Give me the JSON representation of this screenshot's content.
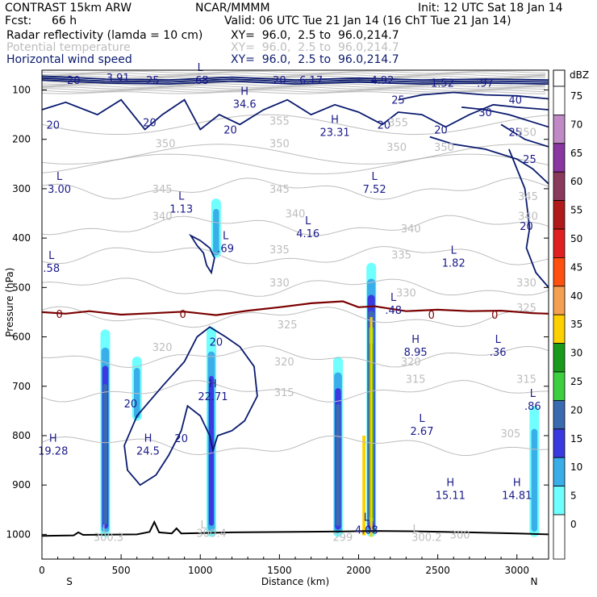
{
  "header": {
    "model": "CONTRAST 15km ARW",
    "center": "NCAR/MMMM",
    "init": "Init: 12 UTC Sat 18 Jan 14",
    "fcst_label": "Fcst:",
    "fcst_value": "66 h",
    "valid": "Valid: 06 UTC Tue 21 Jan 14 (16 ChT Tue 21 Jan 14)"
  },
  "fields": [
    {
      "name": "Radar reflectivity (lamda = 10 cm)",
      "xy": "XY=  96.0,  2.5 to  96.0,214.7",
      "color": "#000000"
    },
    {
      "name": "Potential temperature",
      "xy": "XY=  96.0,  2.5 to  96.0,214.7",
      "color": "#bdbdbd"
    },
    {
      "name": "Horizontal wind speed",
      "xy": "XY=  96.0,  2.5 to  96.0,214.7",
      "color": "#0a1a6e"
    }
  ],
  "chart_data": {
    "type": "cross-section",
    "xlabel": "Distance (km)",
    "ylabel": "Pressure (hPa)",
    "xlim": [
      0,
      3200
    ],
    "ylim": [
      1050,
      60
    ],
    "xticks": [
      0,
      500,
      1000,
      1500,
      2000,
      2500,
      3000
    ],
    "yticks": [
      100,
      200,
      300,
      400,
      500,
      600,
      700,
      800,
      900,
      1000
    ],
    "x_end_labels": {
      "left": "S",
      "right": "N"
    },
    "colorbar": {
      "unit": "dBZ",
      "levels": [
        75,
        70,
        65,
        60,
        55,
        50,
        45,
        40,
        35,
        30,
        25,
        20,
        15,
        10,
        5,
        0
      ],
      "colors": [
        "#ffffff",
        "#c08ac6",
        "#8a36a0",
        "#8a3a5a",
        "#b01a1a",
        "#e02020",
        "#ff5010",
        "#f5a050",
        "#ffd000",
        "#1a9a1a",
        "#3ecf3e",
        "#3a6ab0",
        "#3a3ae0",
        "#3aaee8",
        "#70ffff",
        "#ffffff"
      ]
    },
    "reflectivity_cells": [
      {
        "x_km": 400,
        "p_top": 585,
        "p_bot": 1005,
        "max_dbz": 20
      },
      {
        "x_km": 600,
        "p_top": 640,
        "p_bot": 770,
        "max_dbz": 10
      },
      {
        "x_km": 1070,
        "p_top": 580,
        "p_bot": 1005,
        "max_dbz": 15
      },
      {
        "x_km": 1100,
        "p_top": 320,
        "p_bot": 440,
        "max_dbz": 10
      },
      {
        "x_km": 1870,
        "p_top": 640,
        "p_bot": 1005,
        "max_dbz": 20
      },
      {
        "x_km": 2080,
        "p_top": 450,
        "p_bot": 1005,
        "max_dbz": 30
      },
      {
        "x_km": 3110,
        "p_top": 740,
        "p_bot": 1005,
        "max_dbz": 10
      }
    ],
    "theta_contours": [
      {
        "value": 345,
        "p": 300
      },
      {
        "value": 340,
        "p": 375
      },
      {
        "value": 335,
        "p": 435
      },
      {
        "value": 330,
        "p": 500
      },
      {
        "value": 325,
        "p": 560
      },
      {
        "value": 320,
        "p": 640
      },
      {
        "value": 315,
        "p": 710
      },
      {
        "value": 305,
        "p": 820
      }
    ],
    "labels": [
      {
        "text": "L",
        "x_km": 110,
        "p": 300,
        "color": "#1a1a8a"
      },
      {
        "text": "3.00",
        "x_km": 110,
        "p": 300,
        "color": "#1a1a8a"
      },
      {
        "text": "L",
        "x_km": 2100,
        "p": 300,
        "color": "#1a1a8a"
      },
      {
        "text": "7.52",
        "x_km": 2100,
        "p": 300,
        "color": "#1a1a8a"
      },
      {
        "text": "L",
        "x_km": 2600,
        "p": 450,
        "color": "#1a1a8a"
      },
      {
        "text": "1.82",
        "x_km": 2600,
        "p": 450,
        "color": "#1a1a8a"
      },
      {
        "text": "L",
        "x_km": 1680,
        "p": 390,
        "color": "#1a1a8a"
      },
      {
        "text": "4.16",
        "x_km": 1680,
        "p": 390,
        "color": "#1a1a8a"
      },
      {
        "text": "L",
        "x_km": 880,
        "p": 340,
        "color": "#1a1a8a"
      },
      {
        "text": "1.13",
        "x_km": 880,
        "p": 340,
        "color": "#1a1a8a"
      },
      {
        "text": "L",
        "x_km": 1160,
        "p": 420,
        "color": "#1a1a8a"
      },
      {
        "text": ".69",
        "x_km": 1160,
        "p": 420,
        "color": "#1a1a8a"
      },
      {
        "text": "L",
        "x_km": 60,
        "p": 460,
        "color": "#1a1a8a"
      },
      {
        "text": ".58",
        "x_km": 60,
        "p": 460,
        "color": "#1a1a8a"
      },
      {
        "text": "H",
        "x_km": 1850,
        "p": 185,
        "color": "#1a1a8a"
      },
      {
        "text": "23.31",
        "x_km": 1850,
        "p": 185,
        "color": "#1a1a8a"
      },
      {
        "text": "H",
        "x_km": 1280,
        "p": 128,
        "color": "#1a1a8a"
      },
      {
        "text": "34.6",
        "x_km": 1280,
        "p": 128,
        "color": "#1a1a8a"
      },
      {
        "text": "L",
        "x_km": 1000,
        "p": 80,
        "color": "#1a1a8a"
      },
      {
        "text": ".68",
        "x_km": 1000,
        "p": 80,
        "color": "#1a1a8a"
      },
      {
        "text": "L",
        "x_km": 2220,
        "p": 545,
        "color": "#1a1a8a"
      },
      {
        "text": ".48",
        "x_km": 2220,
        "p": 545,
        "color": "#1a1a8a"
      },
      {
        "text": "H",
        "x_km": 2360,
        "p": 630,
        "color": "#1a1a8a"
      },
      {
        "text": "8.95",
        "x_km": 2360,
        "p": 630,
        "color": "#1a1a8a"
      },
      {
        "text": "L",
        "x_km": 2880,
        "p": 630,
        "color": "#1a1a8a"
      },
      {
        "text": ".36",
        "x_km": 2880,
        "p": 630,
        "color": "#1a1a8a"
      },
      {
        "text": "H",
        "x_km": 1080,
        "p": 720,
        "color": "#1a1a8a"
      },
      {
        "text": "22.71",
        "x_km": 1080,
        "p": 720,
        "color": "#1a1a8a"
      },
      {
        "text": "L",
        "x_km": 2400,
        "p": 790,
        "color": "#1a1a8a"
      },
      {
        "text": "2.67",
        "x_km": 2400,
        "p": 790,
        "color": "#1a1a8a"
      },
      {
        "text": "H",
        "x_km": 70,
        "p": 830,
        "color": "#1a1a8a"
      },
      {
        "text": "19.28",
        "x_km": 70,
        "p": 830,
        "color": "#1a1a8a"
      },
      {
        "text": "H",
        "x_km": 670,
        "p": 830,
        "color": "#1a1a8a"
      },
      {
        "text": "24.5",
        "x_km": 670,
        "p": 830,
        "color": "#1a1a8a"
      },
      {
        "text": "H",
        "x_km": 2580,
        "p": 920,
        "color": "#1a1a8a"
      },
      {
        "text": "15.11",
        "x_km": 2580,
        "p": 920,
        "color": "#1a1a8a"
      },
      {
        "text": "H",
        "x_km": 3000,
        "p": 920,
        "color": "#1a1a8a"
      },
      {
        "text": "14.81",
        "x_km": 3000,
        "p": 920,
        "color": "#1a1a8a"
      },
      {
        "text": "L",
        "x_km": 3100,
        "p": 740,
        "color": "#1a1a8a"
      },
      {
        "text": ".86",
        "x_km": 3100,
        "p": 740,
        "color": "#1a1a8a"
      },
      {
        "text": "L",
        "x_km": 2050,
        "p": 990,
        "color": "#1a1a8a"
      },
      {
        "text": "4.08",
        "x_km": 2050,
        "p": 990,
        "color": "#1a1a8a"
      },
      {
        "text": "20",
        "x_km": 200,
        "p": 80,
        "color": "#1a1a8a"
      },
      {
        "text": "3.91",
        "x_km": 480,
        "p": 75,
        "color": "#1a1a8a"
      },
      {
        "text": "25",
        "x_km": 700,
        "p": 80,
        "color": "#1a1a8a"
      },
      {
        "text": "20",
        "x_km": 1500,
        "p": 80,
        "color": "#1a1a8a"
      },
      {
        "text": "6.17",
        "x_km": 1700,
        "p": 80,
        "color": "#1a1a8a"
      },
      {
        "text": "4.92",
        "x_km": 2150,
        "p": 80,
        "color": "#1a1a8a"
      },
      {
        "text": "1.52",
        "x_km": 2530,
        "p": 85,
        "color": "#1a1a8a"
      },
      {
        "text": ".97",
        "x_km": 2800,
        "p": 85,
        "color": "#1a1a8a"
      },
      {
        "text": "40",
        "x_km": 2990,
        "p": 120,
        "color": "#1a1a8a"
      },
      {
        "text": "30",
        "x_km": 2800,
        "p": 145,
        "color": "#1a1a8a"
      },
      {
        "text": "25",
        "x_km": 2250,
        "p": 120,
        "color": "#1a1a8a"
      },
      {
        "text": "25",
        "x_km": 2990,
        "p": 185,
        "color": "#1a1a8a"
      },
      {
        "text": "25",
        "x_km": 3080,
        "p": 240,
        "color": "#1a1a8a"
      },
      {
        "text": "20",
        "x_km": 70,
        "p": 170,
        "color": "#1a1a8a"
      },
      {
        "text": "20",
        "x_km": 680,
        "p": 165,
        "color": "#1a1a8a"
      },
      {
        "text": "20",
        "x_km": 1190,
        "p": 180,
        "color": "#1a1a8a"
      },
      {
        "text": "20",
        "x_km": 2160,
        "p": 170,
        "color": "#1a1a8a"
      },
      {
        "text": "20",
        "x_km": 2520,
        "p": 180,
        "color": "#1a1a8a"
      },
      {
        "text": "20",
        "x_km": 3060,
        "p": 375,
        "color": "#1a1a8a"
      },
      {
        "text": "20",
        "x_km": 1100,
        "p": 610,
        "color": "#1a1a8a"
      },
      {
        "text": "20",
        "x_km": 560,
        "p": 735,
        "color": "#1a1a8a"
      },
      {
        "text": "20",
        "x_km": 880,
        "p": 805,
        "color": "#1a1a8a"
      },
      {
        "text": "0",
        "x_km": 110,
        "p": 553,
        "color": "#7a0000"
      },
      {
        "text": "0",
        "x_km": 890,
        "p": 553,
        "color": "#7a0000"
      },
      {
        "text": "0",
        "x_km": 2460,
        "p": 555,
        "color": "#7a0000"
      },
      {
        "text": "0",
        "x_km": 2860,
        "p": 555,
        "color": "#7a0000"
      },
      {
        "text": "350",
        "x_km": 780,
        "p": 208,
        "color": "#bdbdbd"
      },
      {
        "text": "350",
        "x_km": 1500,
        "p": 208,
        "color": "#bdbdbd"
      },
      {
        "text": "350",
        "x_km": 2240,
        "p": 215,
        "color": "#bdbdbd"
      },
      {
        "text": "350",
        "x_km": 2540,
        "p": 215,
        "color": "#bdbdbd"
      },
      {
        "text": "355",
        "x_km": 1500,
        "p": 162,
        "color": "#bdbdbd"
      },
      {
        "text": "355",
        "x_km": 2250,
        "p": 165,
        "color": "#bdbdbd"
      },
      {
        "text": "350",
        "x_km": 3060,
        "p": 185,
        "color": "#bdbdbd"
      },
      {
        "text": "345",
        "x_km": 760,
        "p": 300,
        "color": "#bdbdbd"
      },
      {
        "text": "345",
        "x_km": 1500,
        "p": 300,
        "color": "#bdbdbd"
      },
      {
        "text": "345",
        "x_km": 3070,
        "p": 315,
        "color": "#bdbdbd"
      },
      {
        "text": "340",
        "x_km": 760,
        "p": 355,
        "color": "#bdbdbd"
      },
      {
        "text": "340",
        "x_km": 1600,
        "p": 350,
        "color": "#bdbdbd"
      },
      {
        "text": "340",
        "x_km": 2330,
        "p": 380,
        "color": "#bdbdbd"
      },
      {
        "text": "340",
        "x_km": 3070,
        "p": 355,
        "color": "#bdbdbd"
      },
      {
        "text": "335",
        "x_km": 1500,
        "p": 423,
        "color": "#bdbdbd"
      },
      {
        "text": "335",
        "x_km": 2270,
        "p": 433,
        "color": "#bdbdbd"
      },
      {
        "text": "330",
        "x_km": 1500,
        "p": 490,
        "color": "#bdbdbd"
      },
      {
        "text": "330",
        "x_km": 2300,
        "p": 510,
        "color": "#bdbdbd"
      },
      {
        "text": "330",
        "x_km": 3060,
        "p": 490,
        "color": "#bdbdbd"
      },
      {
        "text": "325",
        "x_km": 1550,
        "p": 575,
        "color": "#bdbdbd"
      },
      {
        "text": "325",
        "x_km": 3060,
        "p": 540,
        "color": "#bdbdbd"
      },
      {
        "text": "320",
        "x_km": 760,
        "p": 620,
        "color": "#bdbdbd"
      },
      {
        "text": "320",
        "x_km": 1530,
        "p": 650,
        "color": "#bdbdbd"
      },
      {
        "text": "320",
        "x_km": 2330,
        "p": 650,
        "color": "#bdbdbd"
      },
      {
        "text": "315",
        "x_km": 1530,
        "p": 712,
        "color": "#bdbdbd"
      },
      {
        "text": "315",
        "x_km": 2360,
        "p": 685,
        "color": "#bdbdbd"
      },
      {
        "text": "315",
        "x_km": 3060,
        "p": 685,
        "color": "#bdbdbd"
      },
      {
        "text": "305",
        "x_km": 2960,
        "p": 795,
        "color": "#bdbdbd"
      },
      {
        "text": "L",
        "x_km": 400,
        "p": 988,
        "color": "#bdbdbd"
      },
      {
        "text": "300.3",
        "x_km": 420,
        "p": 1005,
        "color": "#bdbdbd"
      },
      {
        "text": "L",
        "x_km": 1020,
        "p": 980,
        "color": "#bdbdbd"
      },
      {
        "text": "300.4",
        "x_km": 1070,
        "p": 997,
        "color": "#bdbdbd"
      },
      {
        "text": "299",
        "x_km": 1900,
        "p": 1005,
        "color": "#bdbdbd"
      },
      {
        "text": "L",
        "x_km": 2360,
        "p": 988,
        "color": "#bdbdbd"
      },
      {
        "text": "300.2",
        "x_km": 2430,
        "p": 1005,
        "color": "#bdbdbd"
      },
      {
        "text": "300",
        "x_km": 2640,
        "p": 1000,
        "color": "#bdbdbd"
      }
    ]
  }
}
